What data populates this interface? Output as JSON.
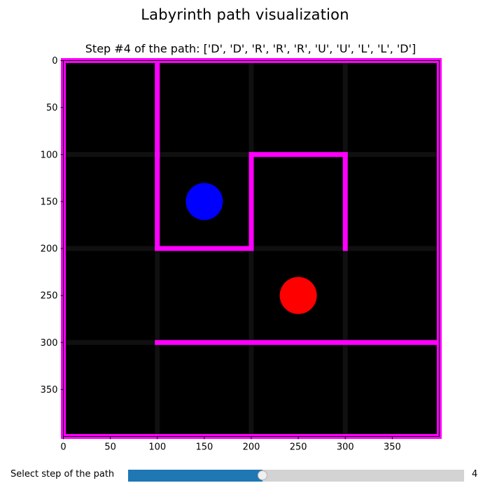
{
  "figure": {
    "suptitle": "Labyrinth path visualization",
    "axes_title": "Step #4 of the path: ['D', 'D', 'R', 'R', 'R', 'U', 'U', 'L', 'L', 'D']"
  },
  "axes": {
    "x_range": [
      0,
      400
    ],
    "y_range": [
      0,
      400
    ],
    "y_inverted": true,
    "x_ticks": [
      0,
      50,
      100,
      150,
      200,
      250,
      300,
      350
    ],
    "y_ticks": [
      0,
      50,
      100,
      150,
      200,
      250,
      300,
      350
    ]
  },
  "maze": {
    "grid_size": 4,
    "cell_size": 100,
    "background_color": "#000000",
    "grid_line_color": "#101010",
    "wall_color": "#ff00ff",
    "walls": [
      [
        [
          0,
          0
        ],
        [
          400,
          0
        ]
      ],
      [
        [
          0,
          400
        ],
        [
          400,
          400
        ]
      ],
      [
        [
          0,
          0
        ],
        [
          0,
          400
        ]
      ],
      [
        [
          400,
          0
        ],
        [
          400,
          400
        ]
      ],
      [
        [
          100,
          0
        ],
        [
          100,
          100
        ]
      ],
      [
        [
          100,
          100
        ],
        [
          100,
          200
        ]
      ],
      [
        [
          100,
          200
        ],
        [
          200,
          200
        ]
      ],
      [
        [
          200,
          100
        ],
        [
          200,
          200
        ]
      ],
      [
        [
          200,
          100
        ],
        [
          300,
          100
        ]
      ],
      [
        [
          300,
          100
        ],
        [
          300,
          200
        ]
      ],
      [
        [
          100,
          300
        ],
        [
          400,
          300
        ]
      ]
    ]
  },
  "markers": [
    {
      "name": "current-position",
      "x": 150,
      "y": 150,
      "color": "#0000ff"
    },
    {
      "name": "goal-position",
      "x": 250,
      "y": 250,
      "color": "#ff0000"
    }
  ],
  "slider": {
    "label": "Select step of the path",
    "min": 0,
    "max": 10,
    "value": 4,
    "value_text": "4",
    "fill_color": "#1f77b4",
    "track_color": "#d3d3d3"
  }
}
